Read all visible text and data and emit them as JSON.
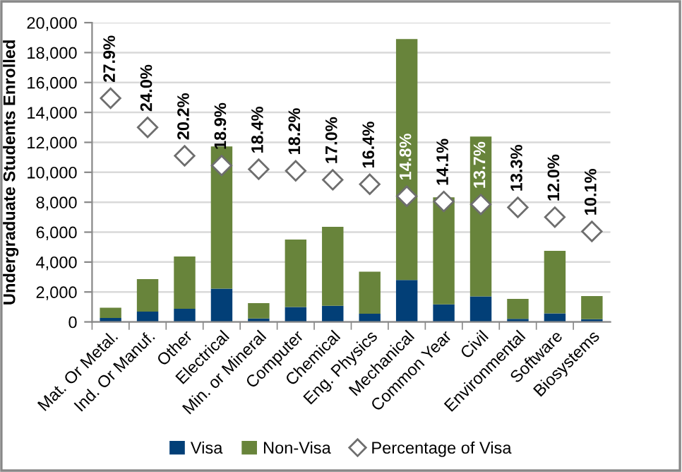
{
  "chart_data": {
    "type": "bar",
    "stacked": true,
    "ylabel": "Undergraduate Students Enrolled",
    "categories": [
      "Mat. Or Metal.",
      "Ind. Or Manuf.",
      "Other",
      "Electrical",
      "Min. or Mineral",
      "Computer",
      "Chemical",
      "Eng. Physics",
      "Mechanical",
      "Common Year",
      "Civil",
      "Environmental",
      "Software",
      "Biosystems"
    ],
    "series": [
      {
        "name": "Visa",
        "color": "#023f77",
        "values": [
          265,
          690,
          880,
          2220,
          230,
          1000,
          1080,
          550,
          2800,
          1170,
          1700,
          205,
          570,
          175
        ]
      },
      {
        "name": "Non-Visa",
        "color": "#68843b",
        "values": [
          685,
          2170,
          3490,
          9510,
          1020,
          4500,
          5270,
          2810,
          16100,
          7160,
          10690,
          1335,
          4175,
          1555
        ]
      },
      {
        "name": "Percentage of Visa",
        "type": "scatter",
        "axis": "y2",
        "marker": "diamond",
        "color": "#ffffff",
        "values": [
          27.9,
          24.0,
          20.2,
          18.9,
          18.4,
          18.2,
          17.0,
          16.4,
          14.8,
          14.1,
          13.7,
          13.3,
          12.0,
          10.1
        ],
        "value_labels": [
          "27.9%",
          "24.0%",
          "20.2%",
          "18.9%",
          "18.4%",
          "18.2%",
          "17.0%",
          "16.4%",
          "14.8%",
          "14.1%",
          "13.7%",
          "13.3%",
          "12.0%",
          "10.1%"
        ]
      }
    ],
    "ylim": [
      0,
      20000
    ],
    "yticks": [
      {
        "value": 0,
        "label": "0"
      },
      {
        "value": 2000,
        "label": "2,000"
      },
      {
        "value": 4000,
        "label": "4,000"
      },
      {
        "value": 6000,
        "label": "6,000"
      },
      {
        "value": 8000,
        "label": "8,000"
      },
      {
        "value": 10000,
        "label": "10,000"
      },
      {
        "value": 12000,
        "label": "12,000"
      },
      {
        "value": 14000,
        "label": "14,000"
      },
      {
        "value": 16000,
        "label": "16,000"
      },
      {
        "value": 18000,
        "label": "18,000"
      },
      {
        "value": 20000,
        "label": "20,000"
      }
    ],
    "y2lim": [
      -2,
      38
    ],
    "tick_labels": [
      "x",
      "y"
    ],
    "grid": "y",
    "legend": "bottom"
  }
}
